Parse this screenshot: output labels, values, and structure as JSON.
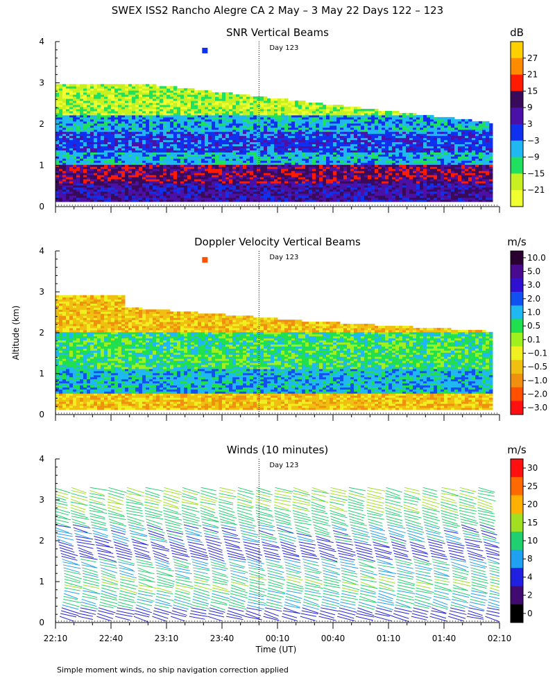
{
  "title": "SWEX ISS2 Rancho Alegre CA   2 May –  3 May 22 Days 122 – 123",
  "footnote": "Simple moment winds, no ship navigation correction applied",
  "xlabel": "Time (UT)",
  "ylabel": "Altitude (km)",
  "day_marker": "Day 123",
  "x_ticks": [
    "22:10",
    "22:40",
    "23:10",
    "23:40",
    "00:10",
    "00:40",
    "01:10",
    "01:40",
    "02:10"
  ],
  "y_ticks": [
    "0",
    "1",
    "2",
    "3",
    "4"
  ],
  "chart_data": [
    {
      "type": "heatmap",
      "title": "SNR Vertical Beams",
      "colorbar_unit": "dB",
      "colorbar_labels": [
        "27",
        "21",
        "15",
        "9",
        "3",
        "−3",
        "−9",
        "−15",
        "−21"
      ],
      "colorbar_colors": [
        "#ffd000",
        "#ff8c00",
        "#ff1a00",
        "#3a0a5a",
        "#4a10a8",
        "#1030f0",
        "#20b8f0",
        "#20e060",
        "#c8f020",
        "#f0ff30"
      ],
      "ylim": [
        0,
        4
      ],
      "x_range": [
        "22:10",
        "02:10"
      ],
      "layers": [
        {
          "alt_km": [
            0.1,
            0.55
          ],
          "snr_db": 6
        },
        {
          "alt_km": [
            0.55,
            1.0
          ],
          "snr_db": 9
        },
        {
          "alt_km": [
            1.0,
            1.3
          ],
          "snr_db": -9
        },
        {
          "alt_km": [
            1.3,
            1.8
          ],
          "snr_db": -3
        },
        {
          "alt_km": [
            1.8,
            2.2
          ],
          "snr_db": -9
        },
        {
          "alt_km": [
            2.2,
            3.0
          ],
          "snr_db": -18
        }
      ]
    },
    {
      "type": "heatmap",
      "title": "Doppler Velocity Vertical Beams",
      "colorbar_unit": "m/s",
      "colorbar_labels": [
        "10.0",
        "5.0",
        "3.0",
        "2.0",
        "1.0",
        "0.5",
        "0.1",
        "−0.1",
        "−0.5",
        "−1.0",
        "−2.0",
        "−3.0"
      ],
      "colorbar_colors": [
        "#2a0030",
        "#4a0a90",
        "#3010d0",
        "#1050f0",
        "#20b8f0",
        "#20e050",
        "#a0f020",
        "#f0f020",
        "#f0c010",
        "#f09010",
        "#ff5000",
        "#ff1010"
      ],
      "ylim": [
        0,
        4
      ],
      "x_range": [
        "22:10",
        "02:10"
      ],
      "layers": [
        {
          "alt_km": [
            0.1,
            0.5
          ],
          "velocity_ms": -0.3
        },
        {
          "alt_km": [
            0.5,
            1.1
          ],
          "velocity_ms": 1.5
        },
        {
          "alt_km": [
            1.1,
            2.0
          ],
          "velocity_ms": 0.5
        },
        {
          "alt_km": [
            2.0,
            2.6
          ],
          "velocity_ms": -0.3
        }
      ]
    },
    {
      "type": "scatter",
      "title": "Winds (10 minutes)",
      "colorbar_unit": "m/s",
      "colorbar_labels": [
        "30",
        "25",
        "20",
        "15",
        "10",
        "8",
        "4",
        "2",
        "0"
      ],
      "colorbar_colors": [
        "#ff1010",
        "#ff6a00",
        "#ffb000",
        "#a0e020",
        "#20d070",
        "#20a0f0",
        "#2020e0",
        "#400a70",
        "#000000"
      ],
      "ylim": [
        0,
        4
      ],
      "x_range": [
        "22:10",
        "02:10"
      ],
      "profile_times": [
        "22:10",
        "22:20",
        "22:30",
        "22:40",
        "22:50",
        "23:00",
        "23:10",
        "23:20",
        "23:30",
        "23:40",
        "23:50",
        "00:00",
        "00:10",
        "00:20",
        "00:30",
        "00:40",
        "00:50",
        "01:00",
        "01:10",
        "01:20",
        "01:30",
        "01:40",
        "01:50",
        "02:00"
      ],
      "speed_profile": [
        {
          "alt_km": 0.2,
          "speed_ms": 6
        },
        {
          "alt_km": 0.6,
          "speed_ms": 10
        },
        {
          "alt_km": 1.0,
          "speed_ms": 14
        },
        {
          "alt_km": 1.4,
          "speed_ms": 10
        },
        {
          "alt_km": 1.8,
          "speed_ms": 6
        },
        {
          "alt_km": 2.2,
          "speed_ms": 9
        },
        {
          "alt_km": 2.6,
          "speed_ms": 13
        },
        {
          "alt_km": 3.0,
          "speed_ms": 15
        }
      ]
    }
  ]
}
